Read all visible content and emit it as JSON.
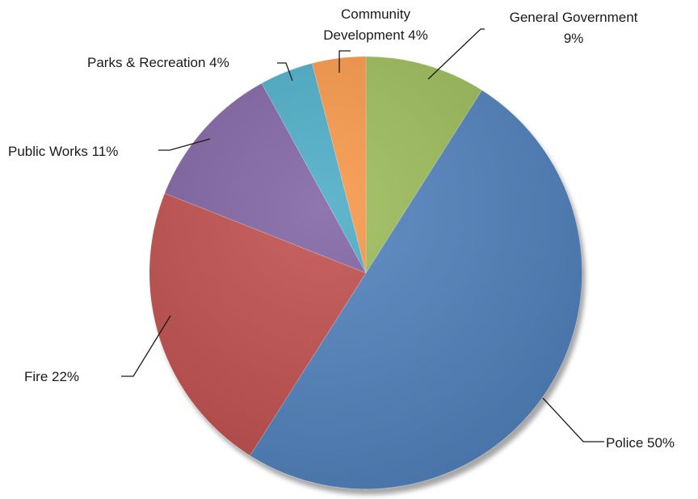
{
  "chart_data": {
    "type": "pie",
    "title": "",
    "start_angle_deg": 0,
    "direction": "clockwise",
    "slices": [
      {
        "label": "General Government",
        "value": 9,
        "display": [
          "General Government",
          "9%"
        ],
        "color": "#9BBB59"
      },
      {
        "label": "Police",
        "value": 50,
        "display": [
          "Police 50%"
        ],
        "color": "#4F81BD"
      },
      {
        "label": "Fire",
        "value": 22,
        "display": [
          "Fire 22%"
        ],
        "color": "#C0504D"
      },
      {
        "label": "Public Works",
        "value": 11,
        "display": [
          "Public Works 11%"
        ],
        "color": "#8064A2"
      },
      {
        "label": "Parks & Recreation",
        "value": 4,
        "display": [
          "Parks & Recreation 4%"
        ],
        "color": "#4BACC6"
      },
      {
        "label": "Community Development",
        "value": 4,
        "display": [
          "Community",
          "Development 4%"
        ],
        "color": "#F79646"
      }
    ],
    "legend": "none",
    "data_labels": "outside-with-leader-lines"
  }
}
